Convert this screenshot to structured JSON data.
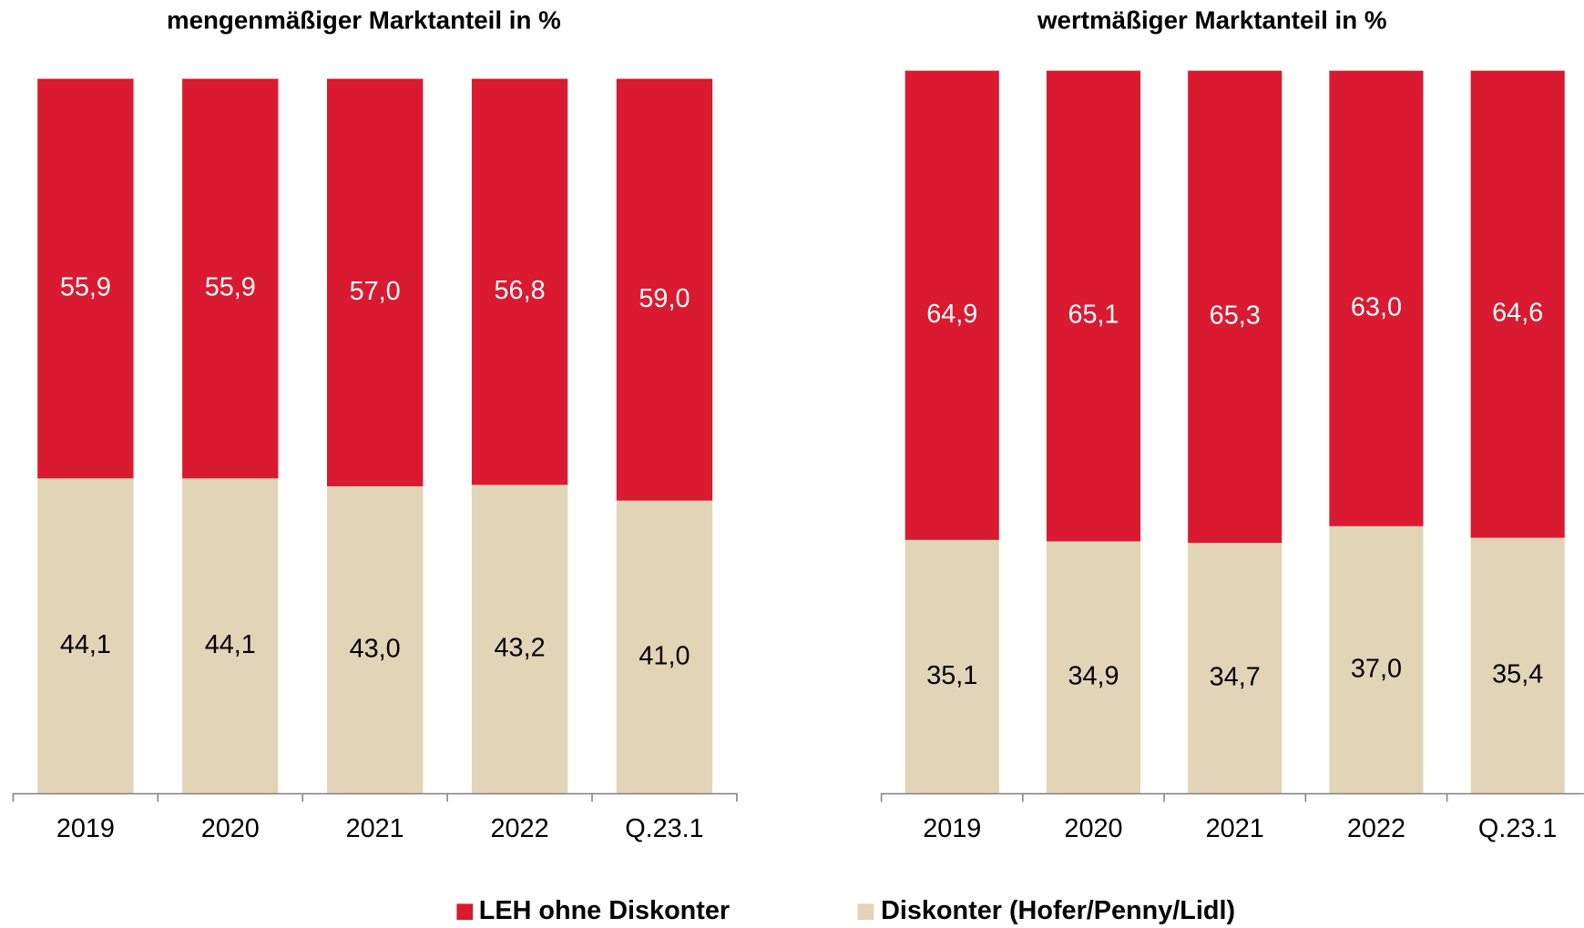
{
  "chart_data": [
    {
      "type": "stacked_bar",
      "title": "mengenmäßiger Marktanteil in %",
      "categories": [
        "2019",
        "2020",
        "2021",
        "2022",
        "Q.23.1"
      ],
      "ylim": [
        0,
        100
      ],
      "series": [
        {
          "name": "LEH ohne Diskonter",
          "color": "#d91a30",
          "values": [
            55.9,
            55.9,
            57.0,
            56.8,
            59.0
          ],
          "value_labels": [
            "55,9",
            "55,9",
            "57,0",
            "56,8",
            "59,0"
          ]
        },
        {
          "name": "Diskonter (Hofer/Penny/Lidl)",
          "color": "#e2d4b7",
          "values": [
            44.1,
            44.1,
            43.0,
            43.2,
            41.0
          ],
          "value_labels": [
            "44,1",
            "44,1",
            "43,0",
            "43,2",
            "41,0"
          ]
        }
      ]
    },
    {
      "type": "stacked_bar",
      "title": "wertmäßiger Marktanteil in %",
      "categories": [
        "2019",
        "2020",
        "2021",
        "2022",
        "Q.23.1"
      ],
      "ylim": [
        0,
        100
      ],
      "series": [
        {
          "name": "LEH ohne Diskonter",
          "color": "#d91a30",
          "values": [
            64.9,
            65.1,
            65.3,
            63.0,
            64.6
          ],
          "value_labels": [
            "64,9",
            "65,1",
            "65,3",
            "63,0",
            "64,6"
          ]
        },
        {
          "name": "Diskonter (Hofer/Penny/Lidl)",
          "color": "#e2d4b7",
          "values": [
            35.1,
            34.9,
            34.7,
            37.0,
            35.4
          ],
          "value_labels": [
            "35,1",
            "34,9",
            "34,7",
            "37,0",
            "35,4"
          ]
        }
      ]
    }
  ]
}
